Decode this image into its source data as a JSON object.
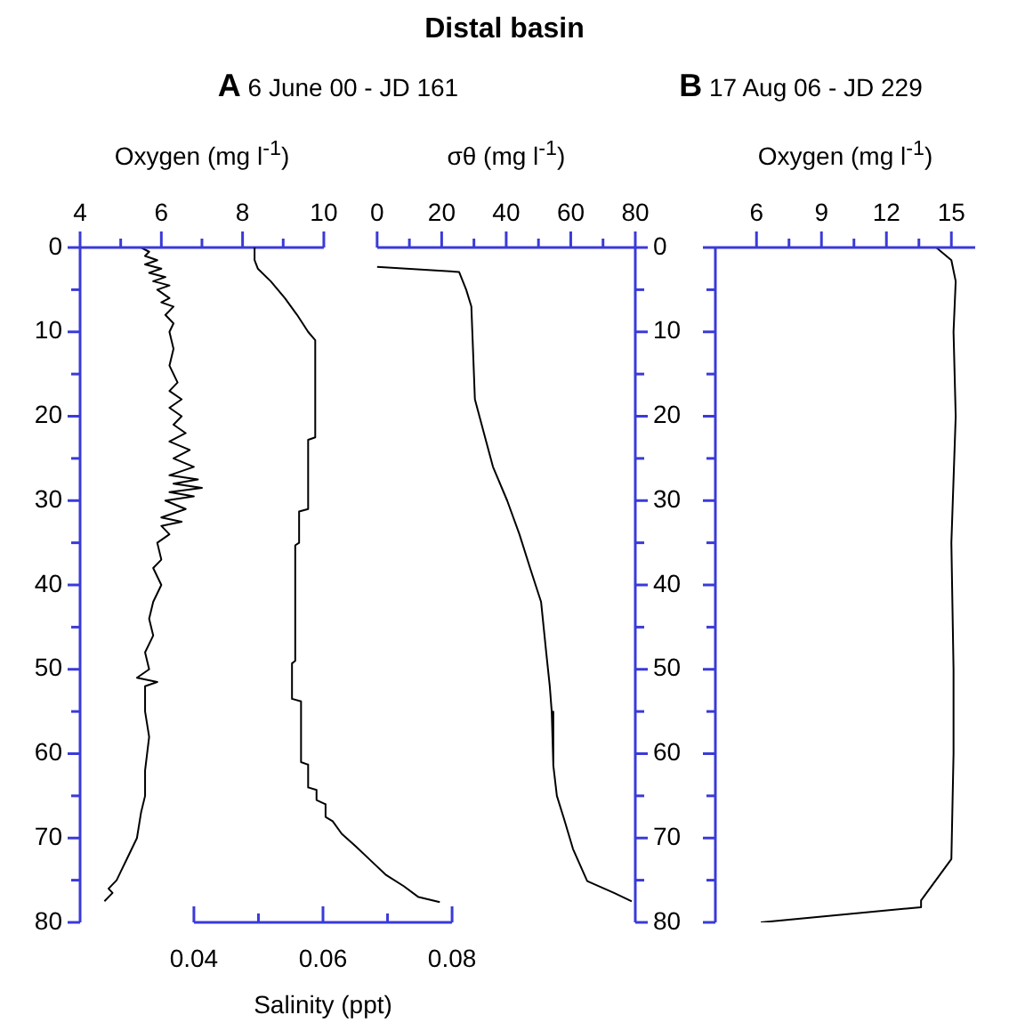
{
  "chart_data": [
    {
      "type": "line",
      "subtitle": "A 6 June 00 - JD 161",
      "grid": false,
      "xlabel": "Oxygen (mg l$^{-1}$)",
      "xlim": [
        4,
        10
      ],
      "xticks": [
        4,
        {
          "value": 5,
          "label": null
        },
        6,
        {
          "value": 7,
          "label": null
        },
        8,
        {
          "value": 9,
          "label": null
        },
        10
      ],
      "ylim": [
        80,
        0
      ],
      "yticks": [
        0,
        {
          "value": 5,
          "label": null
        },
        10,
        {
          "value": 15,
          "label": null
        },
        20,
        {
          "value": 25,
          "label": null
        },
        30,
        {
          "value": 35,
          "label": null
        },
        40,
        {
          "value": 45,
          "label": null
        },
        50,
        {
          "value": 55,
          "label": null
        },
        60,
        {
          "value": 65,
          "label": null
        },
        70,
        {
          "value": 75,
          "label": null
        },
        80
      ],
      "series": [
        {
          "color": "#000000",
          "x": [
            5.5,
            5.7,
            5.6,
            5.9,
            5.6,
            6.0,
            5.7,
            6.1,
            5.8,
            6.2,
            5.9,
            6.2,
            6.0,
            6.3,
            6.1,
            6.3,
            6.2,
            6.3,
            6.2,
            6.4,
            6.2,
            6.5,
            6.2,
            6.5,
            6.3,
            6.6,
            6.2,
            6.7,
            6.3,
            6.8,
            6.2,
            6.9,
            6.3,
            7.0,
            6.2,
            6.8,
            6.1,
            6.6,
            6.0,
            6.5,
            6.0,
            6.2,
            5.9,
            6.0,
            5.8,
            6.0,
            5.8,
            5.7,
            5.8,
            5.6,
            5.7,
            5.4,
            5.9,
            5.6,
            5.6,
            5.7,
            5.6,
            5.6,
            5.5,
            5.4,
            5.2,
            5.0,
            4.9,
            4.7,
            4.8,
            4.6
          ],
          "values": [
            0,
            0.5,
            1,
            1.5,
            2,
            2.5,
            3,
            3.5,
            4,
            4.5,
            5,
            6,
            6.5,
            7,
            8,
            9,
            10,
            12,
            14,
            16,
            17,
            18,
            19,
            20,
            21,
            22,
            23,
            24,
            25,
            26,
            27,
            27.5,
            28,
            28.5,
            29,
            29.5,
            30,
            31,
            32,
            32.5,
            33,
            34,
            35,
            37,
            38,
            40,
            42,
            44,
            46,
            48,
            50,
            51,
            51.5,
            52,
            55,
            58,
            62,
            65,
            67,
            70,
            72,
            74,
            75,
            76,
            76.5,
            77.5
          ]
        }
      ]
    },
    {
      "type": "line",
      "xlabel": "Salinity (ppt)",
      "xlim": [
        0.04,
        0.08
      ],
      "xticks": [
        0.04,
        {
          "value": 0.05,
          "label": null
        },
        0.06,
        {
          "value": 0.07,
          "label": null
        },
        0.08
      ],
      "ylim": [
        80,
        0
      ],
      "tick_labels": "x",
      "series": [
        {
          "color": "#000000",
          "x": [
            0.0494,
            0.0494,
            0.0499,
            0.0519,
            0.0541,
            0.056,
            0.0577,
            0.0588,
            0.0588,
            0.0577,
            0.0577,
            0.0563,
            0.0563,
            0.0557,
            0.0557,
            0.0552,
            0.0552,
            0.0566,
            0.0566,
            0.0577,
            0.0577,
            0.059,
            0.059,
            0.0604,
            0.0604,
            0.0615,
            0.0629,
            0.0651,
            0.0673,
            0.0698,
            0.0725,
            0.0748,
            0.0781
          ],
          "values": [
            0,
            1.5,
            2.5,
            4,
            6,
            8,
            10,
            11,
            22.5,
            22.8,
            31,
            31.3,
            35,
            35.3,
            49,
            49.3,
            53.5,
            53.8,
            61,
            61.3,
            64,
            64.3,
            65.5,
            66,
            67.5,
            68,
            69.5,
            71,
            72.6,
            74.4,
            75.7,
            77,
            77.6
          ]
        }
      ]
    },
    {
      "type": "line",
      "title": "Distal basin",
      "grid": false,
      "xlabel": "σθ (mg l$^{-1}$)",
      "xlim": [
        0,
        80
      ],
      "xticks": [
        0,
        {
          "value": 10,
          "label": null
        },
        20,
        {
          "value": 30,
          "label": null
        },
        40,
        {
          "value": 50,
          "label": null
        },
        60,
        {
          "value": 70,
          "label": null
        },
        80
      ],
      "ylim": [
        80,
        0
      ],
      "yticks": [
        0,
        {
          "value": 5,
          "label": null
        },
        10,
        {
          "value": 15,
          "label": null
        },
        20,
        {
          "value": 25,
          "label": null
        },
        30,
        {
          "value": 35,
          "label": null
        },
        40,
        {
          "value": 45,
          "label": null
        },
        50,
        {
          "value": 55,
          "label": null
        },
        60,
        {
          "value": 65,
          "label": null
        },
        70,
        {
          "value": 75,
          "label": null
        },
        80
      ],
      "series": [
        {
          "color": "#000000",
          "x": [
            0,
            25.4,
            27.6,
            29.2,
            29.5,
            30.3,
            33.1,
            35.9,
            40.3,
            44.1,
            47.4,
            50.8,
            52.4,
            53.5,
            54.1,
            54.6,
            55.7,
            57.9,
            60.7,
            65.1,
            73.4,
            78.9
          ],
          "values": [
            2.3,
            2.9,
            5,
            7,
            10,
            18,
            22,
            26,
            30,
            34,
            38,
            42,
            48,
            52,
            55,
            61.4,
            65,
            67.7,
            71.3,
            75.1,
            76.5,
            77.5
          ]
        }
      ]
    },
    {
      "type": "line",
      "subtitle": "B 17 Aug 06 - JD 229",
      "xlabel": "Oxygen (mg l$^{-1}$)",
      "xlim": [
        4.1,
        16.1
      ],
      "xticks": [
        6,
        {
          "value": 7.5,
          "label": null
        },
        9,
        {
          "value": 10.5,
          "label": null
        },
        12,
        {
          "value": 13.5,
          "label": null
        },
        15
      ],
      "ylim": [
        80,
        0
      ],
      "yticks": [
        0,
        {
          "value": 5,
          "label": null
        },
        10,
        {
          "value": 15,
          "label": null
        },
        20,
        {
          "value": 25,
          "label": null
        },
        30,
        {
          "value": 35,
          "label": null
        },
        40,
        {
          "value": 45,
          "label": null
        },
        50,
        {
          "value": 55,
          "label": null
        },
        60,
        {
          "value": 65,
          "label": null
        },
        70,
        {
          "value": 75,
          "label": null
        },
        80
      ],
      "tick_labels": "x",
      "series": [
        {
          "color": "#000000",
          "x": [
            14.3,
            15,
            15.2,
            15.1,
            15.2,
            15.0,
            15.1,
            15.1,
            15.0,
            13.6,
            13.6,
            6.2
          ],
          "values": [
            0,
            1.5,
            4,
            10,
            20,
            35,
            50,
            60,
            72.5,
            77.4,
            78.2,
            80
          ]
        }
      ]
    }
  ]
}
